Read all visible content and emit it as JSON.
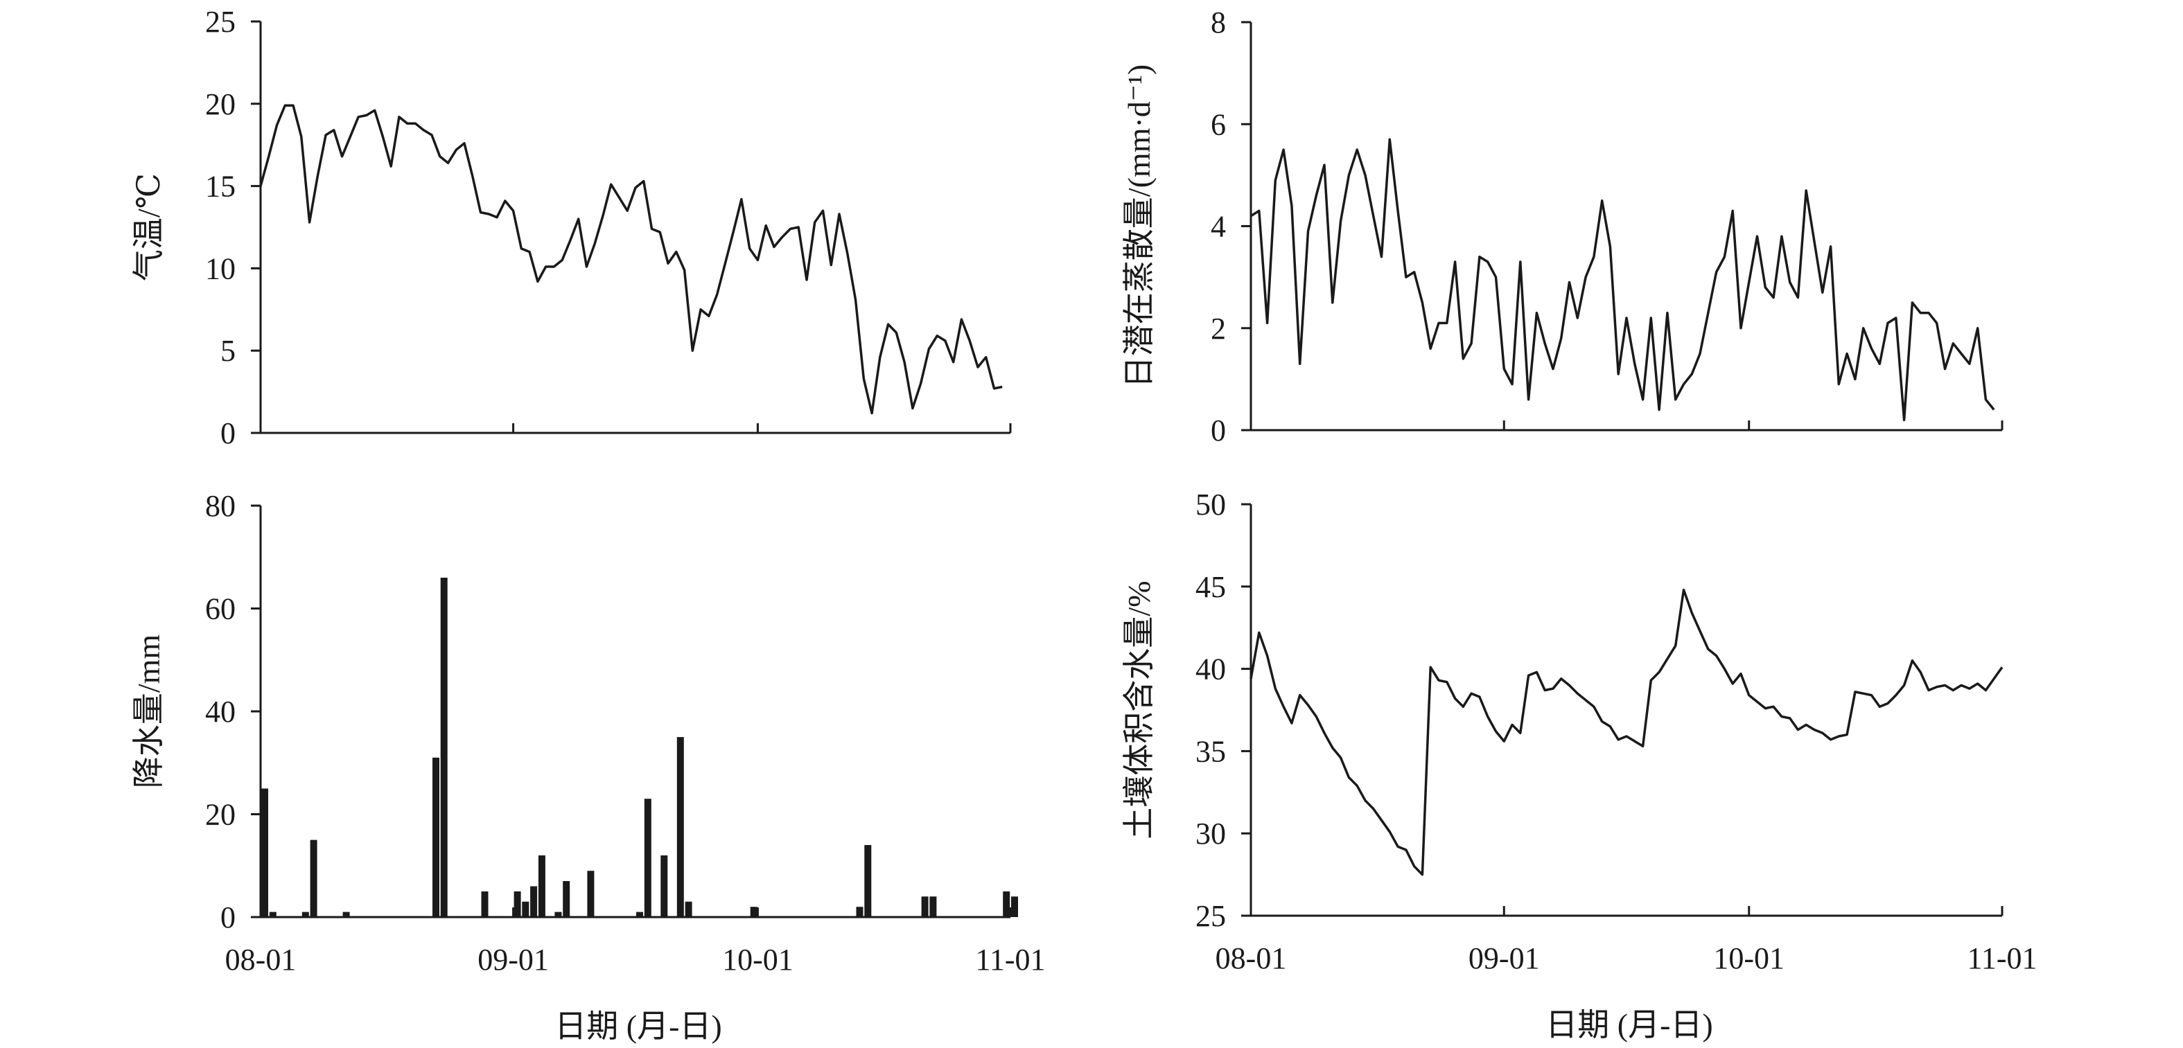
{
  "chart_data": [
    {
      "type": "line",
      "ylabel": "气温/℃",
      "xlabel": "",
      "ylim": [
        0,
        25
      ],
      "yticks": [
        "0",
        "5",
        "10",
        "15",
        "20",
        "25"
      ],
      "xticks": [
        "08-01",
        "09-01",
        "10-01",
        "11-01"
      ],
      "grid": false,
      "series": [
        {
          "values": [
            15.0,
            16.8,
            18.7,
            19.9,
            19.9,
            18.0,
            12.8,
            15.6,
            18.1,
            18.4,
            16.8,
            18.0,
            19.2,
            19.3,
            19.6,
            18.0,
            16.2,
            19.2,
            18.8,
            18.8,
            18.4,
            18.1,
            16.8,
            16.4,
            17.2,
            17.6,
            15.6,
            13.4,
            13.3,
            13.1,
            14.1,
            13.5,
            11.2,
            11.0,
            9.2,
            10.1,
            10.1,
            10.5,
            11.7,
            13.0,
            10.1,
            11.5,
            13.2,
            15.1,
            14.3,
            13.5,
            14.9,
            15.3,
            12.4,
            12.2,
            10.3,
            11.0,
            9.9,
            5.0,
            7.5,
            7.1,
            8.4,
            10.3,
            12.2,
            14.2,
            11.2,
            10.5,
            12.6,
            11.3,
            11.9,
            12.4,
            12.5,
            9.3,
            12.8,
            13.5,
            10.2,
            13.3,
            10.9,
            8.1,
            3.3,
            1.2,
            4.6,
            6.6,
            6.1,
            4.3,
            1.5,
            3.0,
            5.1,
            5.9,
            5.6,
            4.3,
            6.9,
            5.6,
            4.0,
            4.6,
            2.7,
            2.8
          ]
        }
      ]
    },
    {
      "type": "line",
      "ylabel": "日潜在蒸散量/(mm·d⁻¹)",
      "xlabel": "",
      "ylim": [
        0,
        8
      ],
      "yticks": [
        "0",
        "2",
        "4",
        "6",
        "8"
      ],
      "xticks": [
        "08-01",
        "09-01",
        "10-01",
        "11-01"
      ],
      "grid": false,
      "series": [
        {
          "values": [
            4.2,
            4.3,
            2.1,
            4.9,
            5.5,
            4.4,
            1.3,
            3.9,
            4.6,
            5.2,
            2.5,
            4.1,
            5.0,
            5.5,
            5.0,
            4.2,
            3.4,
            5.7,
            4.3,
            3.0,
            3.1,
            2.5,
            1.6,
            2.1,
            2.1,
            3.3,
            1.4,
            1.7,
            3.4,
            3.3,
            3.0,
            1.2,
            0.9,
            3.3,
            0.6,
            2.3,
            1.7,
            1.2,
            1.8,
            2.9,
            2.2,
            3.0,
            3.4,
            4.5,
            3.6,
            1.1,
            2.2,
            1.3,
            0.6,
            2.2,
            0.4,
            2.3,
            0.6,
            0.9,
            1.1,
            1.5,
            2.3,
            3.1,
            3.4,
            4.3,
            2.0,
            2.9,
            3.8,
            2.8,
            2.6,
            3.8,
            2.9,
            2.6,
            4.7,
            3.7,
            2.7,
            3.6,
            0.9,
            1.5,
            1.0,
            2.0,
            1.6,
            1.3,
            2.1,
            2.2,
            0.2,
            2.5,
            2.3,
            2.3,
            2.1,
            1.2,
            1.7,
            1.5,
            1.3,
            2.0,
            0.6,
            0.4
          ]
        }
      ]
    },
    {
      "type": "bar",
      "ylabel": "降水量/mm",
      "xlabel": "日期 (月-日)",
      "ylim": [
        0,
        80
      ],
      "yticks": [
        "0",
        "20",
        "40",
        "60",
        "80"
      ],
      "xticks": [
        "08-01",
        "09-01",
        "10-01",
        "11-01"
      ],
      "grid": false,
      "series": [
        {
          "values": [
            25,
            1,
            0,
            0,
            0,
            1,
            15,
            0,
            0,
            0,
            1,
            0,
            0,
            0,
            0,
            0,
            0,
            0,
            0,
            0,
            0,
            31,
            66,
            0,
            0,
            0,
            0,
            5,
            0,
            0,
            0,
            5,
            3,
            6,
            12,
            0,
            1,
            7,
            0,
            0,
            9,
            0,
            0,
            0,
            0,
            0,
            1,
            23,
            0,
            12,
            0,
            35,
            3,
            0,
            0,
            0,
            0,
            0,
            0,
            0,
            2,
            0,
            0,
            0,
            0,
            0,
            0,
            0,
            0,
            0,
            0,
            0,
            0,
            2,
            14,
            0,
            0,
            0,
            0,
            0,
            0,
            4,
            4,
            0,
            0,
            0,
            0,
            0,
            0,
            0,
            0,
            5,
            4
          ]
        }
      ]
    },
    {
      "type": "line",
      "ylabel": "土壤体积含水量/%",
      "xlabel": "日期 (月-日)",
      "ylim": [
        25,
        50
      ],
      "yticks": [
        "25",
        "30",
        "35",
        "40",
        "45",
        "50"
      ],
      "xticks": [
        "08-01",
        "09-01",
        "10-01",
        "11-01"
      ],
      "grid": false,
      "series": [
        {
          "values": [
            39.4,
            42.2,
            40.8,
            38.8,
            37.7,
            36.7,
            38.4,
            37.8,
            37.1,
            36.1,
            35.2,
            34.6,
            33.4,
            32.9,
            32.0,
            31.5,
            30.8,
            30.1,
            29.2,
            29.0,
            28.0,
            27.5,
            40.1,
            39.3,
            39.2,
            38.2,
            37.7,
            38.5,
            38.3,
            37.1,
            36.2,
            35.6,
            36.6,
            36.1,
            39.6,
            39.8,
            38.7,
            38.8,
            39.4,
            39.0,
            38.5,
            38.1,
            37.7,
            36.8,
            36.5,
            35.7,
            35.9,
            35.6,
            35.3,
            39.3,
            39.8,
            40.6,
            41.4,
            44.8,
            43.4,
            42.3,
            41.2,
            40.8,
            40.0,
            39.1,
            39.7,
            38.4,
            38.0,
            37.6,
            37.7,
            37.1,
            37.0,
            36.3,
            36.6,
            36.3,
            36.1,
            35.7,
            35.9,
            36.0,
            38.6,
            38.5,
            38.4,
            37.7,
            37.9,
            38.4,
            39.0,
            40.5,
            39.8,
            38.7,
            38.9,
            39.0,
            38.7,
            39.0,
            38.8,
            39.1,
            38.7,
            39.4,
            40.1
          ]
        }
      ]
    }
  ]
}
